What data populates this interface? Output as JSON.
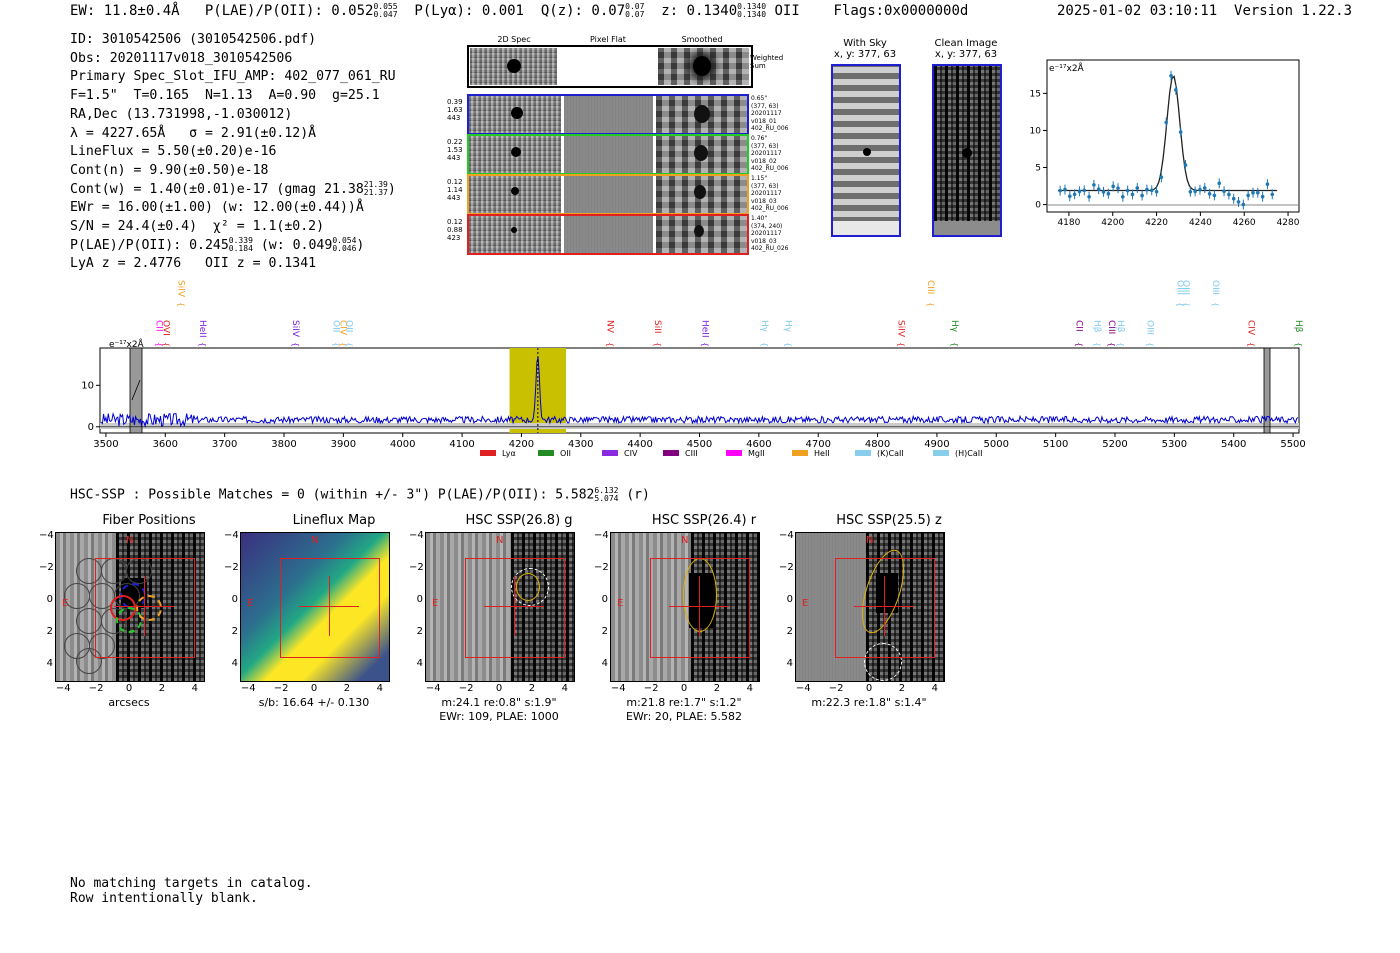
{
  "header": {
    "ew": "EW: 11.8±0.4Å",
    "plae_label": "P(LAE)/P(OII): 0.052",
    "plae_hi": "0.055",
    "plae_lo": "0.047",
    "plya": "P(Lyα): 0.001",
    "qz_label": "Q(z): 0.07",
    "qz_hi": "0.07",
    "qz_lo": "0.07",
    "z_label": "z: 0.1340",
    "z_hi": "0.1340",
    "z_lo": "0.1340",
    "z_line": "OII",
    "flags": "Flags:0x0000000d",
    "timestamp": "2025-01-02 03:10:11",
    "version": "Version 1.22.3"
  },
  "info": {
    "id": "ID: 3010542506 (3010542506.pdf)",
    "obs": "Obs: 20201117v018_3010542506",
    "primary": "Primary Spec_Slot_IFU_AMP: 402_077_061_RU",
    "params": "F=1.5\"  T=0.165  N=1.13  A=0.90  g=25.1",
    "radec": "RA,Dec (13.731998,-1.030012)",
    "lambda": "λ = 4227.65Å   σ = 2.91(±0.12)Å",
    "lineflux": "LineFlux = 5.50(±0.20)e-16",
    "contn": "Cont(n) = 9.90(±0.50)e-18",
    "contw": "Cont(w) = 1.40(±0.01)e-17 (gmag 21.38",
    "contw_hi": "21.39",
    "contw_lo": "21.37",
    "contw_end": ")",
    "ewr": "EWr = 16.00(±1.00) (w: 12.00(±0.44))Å",
    "sn": "S/N = 24.4(±0.4)  χ² = 1.1(±0.2)",
    "plae": "P(LAE)/P(OII): 0.245",
    "plae_hi": "0.339",
    "plae_lo": "0.184",
    "plae_w": "(w: 0.049",
    "plae_w_hi": "0.054",
    "plae_w_lo": "0.046",
    "plae_end": ")",
    "lya": "LyA z = 2.4776   OII z = 0.1341"
  },
  "cutouts": {
    "col_2d": "2D Spec",
    "col_flat": "Pixel Flat",
    "col_smooth": "Smoothed",
    "weighted": "Weighted\nSum",
    "rows": [
      {
        "left": "0.39\n1.63\n443",
        "right": "0.65\"\n(377, 63)\n20201117\nv018_01\n402_RU_006",
        "color": "#1f1fd0"
      },
      {
        "left": "0.22\n1.53\n443",
        "right": "0.76\"\n(377, 63)\n20201117\nv018_02\n402_RU_006",
        "color": "#22cc22"
      },
      {
        "left": "0.12\n1.14\n443",
        "right": "1.15\"\n(377, 63)\n20201117\nv018_03\n402_RU_006",
        "color": "#f0a020"
      },
      {
        "left": "0.12\n0.88\n423",
        "right": "1.40\"\n(374, 240)\n20201117\nv018_03\n402_RU_026",
        "color": "#e02020"
      }
    ]
  },
  "sky": {
    "with_sky": "With Sky",
    "with_sky_xy": "x, y: 377, 63",
    "clean": "Clean Image",
    "clean_xy": "x, y: 377, 63"
  },
  "zoom_plot": {
    "unit": "e⁻¹⁷x2Å",
    "xticks": [
      "4180",
      "4200",
      "4220",
      "4240",
      "4260",
      "4280"
    ],
    "yticks": [
      "0",
      "5",
      "10",
      "15"
    ]
  },
  "chart_data": {
    "type": "line",
    "title": "",
    "ylabel": "e⁻¹⁷x2Å",
    "xlabel": "",
    "xlim": [
      3490,
      5510
    ],
    "ylim": [
      -1.5,
      19
    ],
    "xticks": [
      "3500",
      "3600",
      "3700",
      "3800",
      "3900",
      "4000",
      "4100",
      "4200",
      "4300",
      "4400",
      "4500",
      "4600",
      "4700",
      "4800",
      "4900",
      "5000",
      "5100",
      "5200",
      "5300",
      "5400",
      "5500"
    ],
    "yticks": [
      "0",
      "10"
    ],
    "line_wavelength": 4227.65,
    "highlight_range": [
      4180,
      4275
    ],
    "line_markers": [
      {
        "label": "CII",
        "x": 3580,
        "color": "#ff00ff"
      },
      {
        "label": "OVI",
        "x": 3592,
        "color": "#e02020"
      },
      {
        "label": "SiIV",
        "x": 3617,
        "color": "#f0a020"
      },
      {
        "label": "HeII",
        "x": 3653,
        "color": "#8020e0"
      },
      {
        "label": "SiIV",
        "x": 3810,
        "color": "#8020e0"
      },
      {
        "label": "OII",
        "x": 3878,
        "color": "#80c8f0"
      },
      {
        "label": "CIV",
        "x": 3890,
        "color": "#f0a020"
      },
      {
        "label": "OII",
        "x": 3900,
        "color": "#80c8f0"
      },
      {
        "label": "NV",
        "x": 4340,
        "color": "#e02020"
      },
      {
        "label": "SiII",
        "x": 4420,
        "color": "#e02020"
      },
      {
        "label": "HeII",
        "x": 4500,
        "color": "#8020e0"
      },
      {
        "label": "Hγ",
        "x": 4600,
        "color": "#80c8f0"
      },
      {
        "label": "Hγ",
        "x": 4640,
        "color": "#80c8f0"
      },
      {
        "label": "SiIV",
        "x": 4830,
        "color": "#e02020"
      },
      {
        "label": "CIII",
        "x": 4880,
        "color": "#f0a020"
      },
      {
        "label": "Hγ",
        "x": 4920,
        "color": "#228b22"
      },
      {
        "label": "CII",
        "x": 5130,
        "color": "#800080"
      },
      {
        "label": "Hβ",
        "x": 5160,
        "color": "#80c8f0"
      },
      {
        "label": "CIII",
        "x": 5185,
        "color": "#800080"
      },
      {
        "label": "Hβ",
        "x": 5200,
        "color": "#80c8f0"
      },
      {
        "label": "OIII",
        "x": 5250,
        "color": "#80c8f0"
      },
      {
        "label": "OIII",
        "x": 5300,
        "color": "#80c8f0"
      },
      {
        "label": "OIII",
        "x": 5310,
        "color": "#80c8f0"
      },
      {
        "label": "OIII",
        "x": 5360,
        "color": "#80c8f0"
      },
      {
        "label": "CIV",
        "x": 5420,
        "color": "#e02020"
      },
      {
        "label": "Hβ",
        "x": 5500,
        "color": "#228b22"
      }
    ],
    "legend": [
      {
        "label": "Lyα",
        "color": "#e02020"
      },
      {
        "label": "OII",
        "color": "#228b22"
      },
      {
        "label": "CIV",
        "color": "#8a2be2"
      },
      {
        "label": "CIII",
        "color": "#800080"
      },
      {
        "label": "MgII",
        "color": "#ff00ff"
      },
      {
        "label": "HeII",
        "color": "#f0a020"
      },
      {
        "label": "(K)CaII",
        "color": "#87ceeb"
      },
      {
        "label": "(H)CaII",
        "color": "#87ceeb"
      }
    ],
    "series_color": "#0000cc"
  },
  "hsc": {
    "summary": "HSC-SSP : Possible Matches = 0 (within +/- 3\")  P(LAE)/P(OII): 5.582",
    "summary_hi": "6.132",
    "summary_lo": "5.074",
    "summary_end": "(r)",
    "axis_ticks": [
      "−4",
      "−2",
      "0",
      "2",
      "4"
    ],
    "panels": [
      {
        "title": "Fiber Positions",
        "cap1": "arcsecs",
        "cap2": ""
      },
      {
        "title": "Lineflux Map",
        "cap1": "s/b: 16.64 +/- 0.130",
        "cap2": ""
      },
      {
        "title": "HSC SSP(26.8) g",
        "cap1": "m:24.1  re:0.8\"  s:1.9\"",
        "cap2": "EWr: 109, PLAE: 1000"
      },
      {
        "title": "HSC SSP(26.4) r",
        "cap1": "m:21.8  re:1.7\"  s:1.2\"",
        "cap2": "EWr: 20, PLAE: 5.582"
      },
      {
        "title": "HSC SSP(25.5) z",
        "cap1": "m:22.3  re:1.8\"  s:1.4\"",
        "cap2": ""
      }
    ],
    "compass_n": "N",
    "compass_e": "E"
  },
  "footer": {
    "line1": "No matching targets in catalog.",
    "line2": "Row intentionally blank."
  }
}
